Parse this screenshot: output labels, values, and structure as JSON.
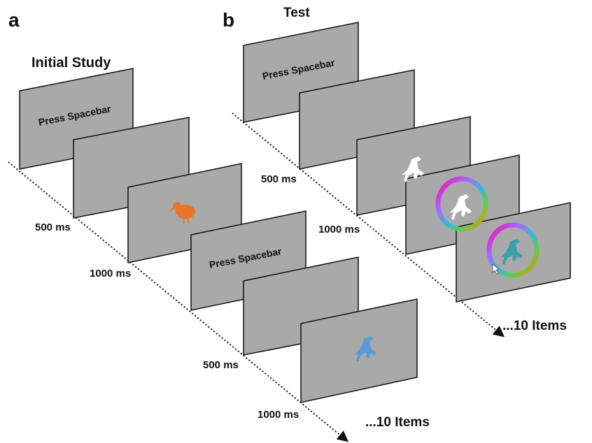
{
  "panels": [
    {
      "letter": "a",
      "title": "Initial Study",
      "prompts": [
        "Press Spacebar",
        "Press Spacebar"
      ],
      "timings": [
        "500 ms",
        "1000 ms",
        "500 ms",
        "1000 ms"
      ],
      "footer": "...10 Items"
    },
    {
      "letter": "b",
      "title": "Test",
      "prompts": [
        "Press Spacebar"
      ],
      "timings": [
        "500 ms",
        "1000 ms"
      ],
      "footer": "...10 Items"
    }
  ]
}
